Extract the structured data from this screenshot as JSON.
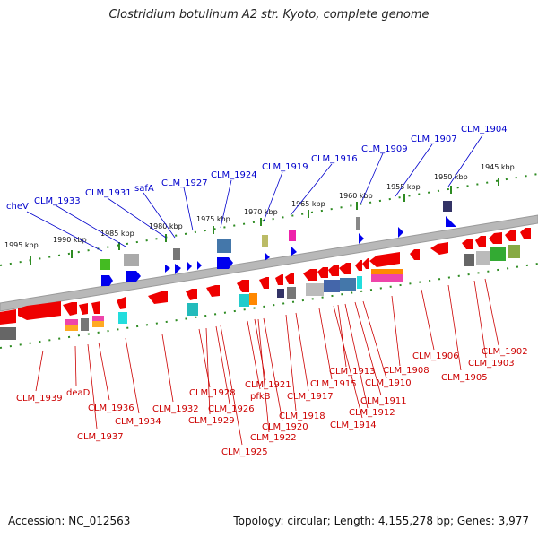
{
  "title": "Clostridium botulinum A2 str. Kyoto, complete genome",
  "footer": {
    "accession": "Accession: NC_012563",
    "summary": "Topology: circular; Length: 4,155,278 bp; Genes: 3,977"
  },
  "colors": {
    "top_label": "#0000cc",
    "bottom_label": "#cc0000",
    "gene_arrow": "#ee0000",
    "blue_arrow": "#0000ee",
    "backbone": "#b8b8b8",
    "tick": "#2e8b22"
  },
  "scale_labels": [
    "1995 kbp",
    "1990 kbp",
    "1985 kbp",
    "1980 kbp",
    "1975 kbp",
    "1970 kbp",
    "1965 kbp",
    "1960 kbp",
    "1955 kbp",
    "1950 kbp",
    "1945 kbp"
  ],
  "top_genes": [
    "cheV",
    "CLM_1933",
    "CLM_1931",
    "safA",
    "CLM_1927",
    "CLM_1924",
    "CLM_1919",
    "CLM_1916",
    "CLM_1909",
    "CLM_1907",
    "CLM_1904"
  ],
  "bottom_genes": [
    "CLM_1939",
    "deaD",
    "CLM_1937",
    "CLM_1936",
    "CLM_1934",
    "CLM_1932",
    "CLM_1928",
    "CLM_1929",
    "CLM_1926",
    "CLM_1925",
    "pfkB",
    "CLM_1921",
    "CLM_1922",
    "CLM_1920",
    "CLM_1918",
    "CLM_1917",
    "CLM_1915",
    "CLM_1914",
    "CLM_1913",
    "CLM_1912",
    "CLM_1911",
    "CLM_1910",
    "CLM_1908",
    "CLM_1906",
    "CLM_1905",
    "CLM_1903",
    "CLM_1902"
  ]
}
